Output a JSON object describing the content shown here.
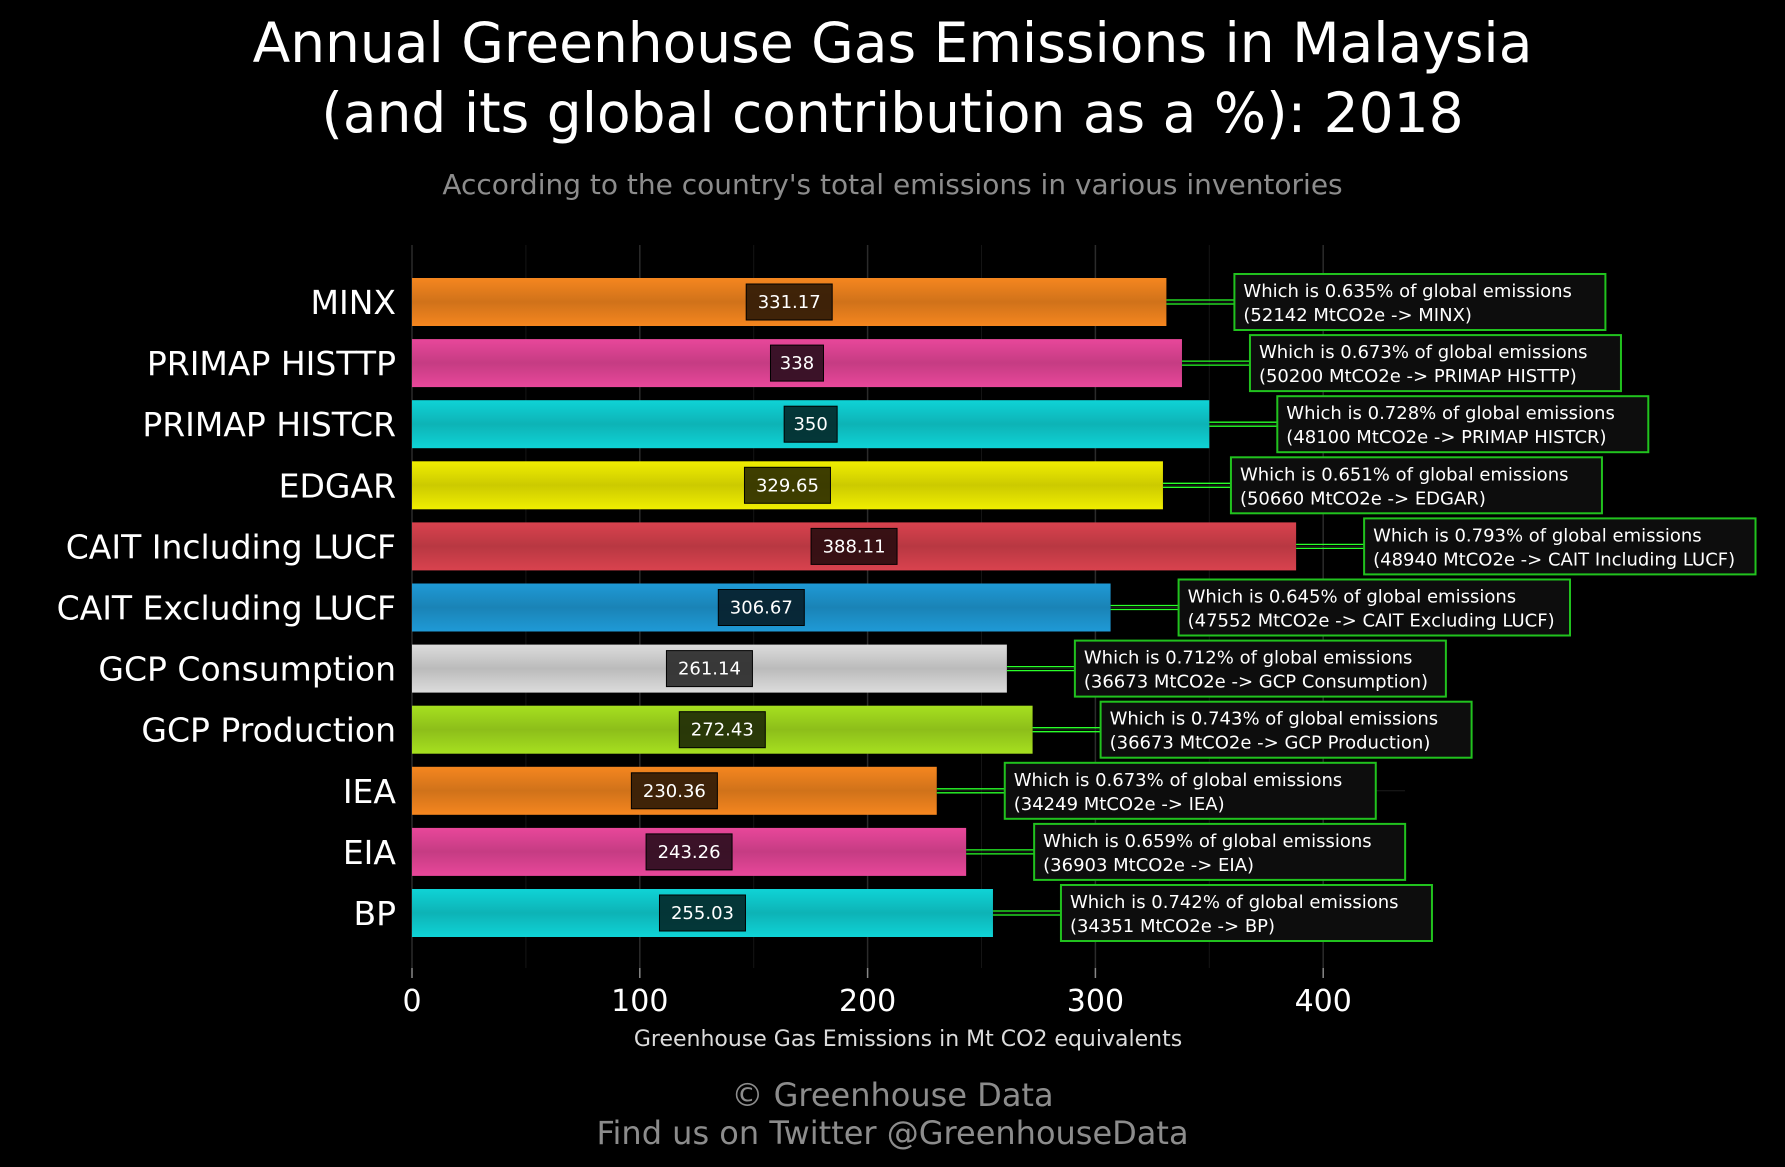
{
  "header": {
    "title_line1": "Annual Greenhouse Gas Emissions in Malaysia",
    "title_line2": "(and its global contribution as a %): 2018",
    "subtitle": "According to the country's total emissions in various inventories"
  },
  "footer": {
    "copyright": "© Greenhouse Data",
    "twitter": "Find us on Twitter @GreenhouseData"
  },
  "chart_data": {
    "type": "bar",
    "orientation": "horizontal",
    "xlabel": "Greenhouse Gas Emissions in Mt CO2 equivalents",
    "ylabel": "",
    "xlim": [
      0,
      450
    ],
    "xticks": [
      0,
      100,
      200,
      300,
      400
    ],
    "grid": true,
    "categories": [
      "MINX",
      "PRIMAP HISTTP",
      "PRIMAP HISTCR",
      "EDGAR",
      "CAIT Including LUCF",
      "CAIT Excluding LUCF",
      "GCP Consumption",
      "GCP Production",
      "IEA",
      "EIA",
      "BP"
    ],
    "values": [
      331.17,
      338,
      350,
      329.65,
      388.11,
      306.67,
      261.14,
      272.43,
      230.36,
      243.26,
      255.03
    ],
    "value_labels": [
      "331.17",
      "338",
      "350",
      "329.65",
      "388.11",
      "306.67",
      "261.14",
      "272.43",
      "230.36",
      "243.26",
      "255.03"
    ],
    "colors": [
      "#f5861f",
      "#e8479a",
      "#0fd3d6",
      "#f0ee00",
      "#d9424e",
      "#1f9ad6",
      "#dcdcdc",
      "#a6e01f",
      "#f5861f",
      "#e8479a",
      "#0fd3d6"
    ],
    "annotations": [
      {
        "line1": "Which is 0.635% of global emissions",
        "line2": "(52142 MtCO2e -> MINX)"
      },
      {
        "line1": "Which is 0.673% of global emissions",
        "line2": "(50200 MtCO2e -> PRIMAP HISTTP)"
      },
      {
        "line1": "Which is 0.728% of global emissions",
        "line2": "(48100 MtCO2e -> PRIMAP HISTCR)"
      },
      {
        "line1": "Which is 0.651% of global emissions",
        "line2": "(50660 MtCO2e -> EDGAR)"
      },
      {
        "line1": "Which is 0.793% of global emissions",
        "line2": "(48940 MtCO2e -> CAIT Including LUCF)"
      },
      {
        "line1": "Which is 0.645% of global emissions",
        "line2": "(47552 MtCO2e -> CAIT Excluding LUCF)"
      },
      {
        "line1": "Which is 0.712% of global emissions",
        "line2": "(36673 MtCO2e -> GCP Consumption)"
      },
      {
        "line1": "Which is 0.743% of global emissions",
        "line2": "(36673 MtCO2e -> GCP Production)"
      },
      {
        "line1": "Which is 0.673% of global emissions",
        "line2": "(34249 MtCO2e -> IEA)"
      },
      {
        "line1": "Which is 0.659% of global emissions",
        "line2": "(36903 MtCO2e -> EIA)"
      },
      {
        "line1": "Which is 0.742% of global emissions",
        "line2": "(34351 MtCO2e -> BP)"
      }
    ],
    "annotation_border_color": "#21c21e",
    "connector_color": "#29ff29"
  }
}
